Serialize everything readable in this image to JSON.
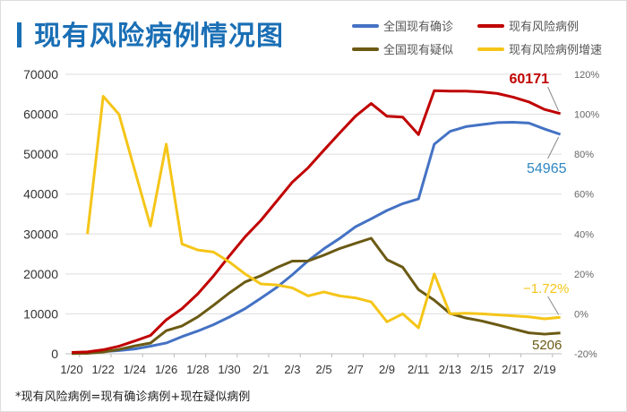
{
  "title": "现有风险病例情况图",
  "footnote": "*现有风险病例=现有确诊病例+现在疑似病例",
  "chart_data": {
    "type": "line",
    "title": "现有风险病例情况图",
    "x": [
      "1/20",
      "1/21",
      "1/22",
      "1/23",
      "1/24",
      "1/25",
      "1/26",
      "1/27",
      "1/28",
      "1/29",
      "1/30",
      "1/31",
      "2/1",
      "2/2",
      "2/3",
      "2/4",
      "2/5",
      "2/6",
      "2/7",
      "2/8",
      "2/9",
      "2/10",
      "2/11",
      "2/12",
      "2/13",
      "2/14",
      "2/15",
      "2/16",
      "2/17",
      "2/18",
      "2/19",
      "2/20"
    ],
    "x_tick_labels": [
      "1/20",
      "1/22",
      "1/24",
      "1/26",
      "1/28",
      "1/30",
      "2/1",
      "2/3",
      "2/5",
      "2/7",
      "2/9",
      "2/11",
      "2/13",
      "2/15",
      "2/17",
      "2/19"
    ],
    "y_left": {
      "min": 0,
      "max": 70000,
      "ticks": [
        "0",
        "10000",
        "20000",
        "30000",
        "40000",
        "50000",
        "60000",
        "70000"
      ]
    },
    "y_right": {
      "min": -20,
      "max": 120,
      "unit": "%",
      "ticks": [
        "-20%",
        "0%",
        "20%",
        "40%",
        "60%",
        "80%",
        "100%",
        "120%"
      ]
    },
    "grid": true,
    "legend_placement": "top-right",
    "series": [
      {
        "name": "全国现有确诊",
        "axis": "left",
        "color": "#4472c4",
        "values": [
          291,
          380,
          550,
          800,
          1200,
          1900,
          2700,
          4300,
          5700,
          7300,
          9200,
          11300,
          13900,
          16600,
          19800,
          23300,
          26300,
          28900,
          31800,
          33800,
          35900,
          37600,
          38800,
          52500,
          55700,
          56900,
          57400,
          57900,
          58000,
          57800,
          56300,
          54965
        ]
      },
      {
        "name": "现有风险病例",
        "axis": "left",
        "color": "#c00000",
        "values": [
          345,
          480,
          1000,
          1900,
          3200,
          4600,
          8500,
          11300,
          15000,
          19500,
          24500,
          29300,
          33400,
          38200,
          43000,
          46600,
          51000,
          55300,
          59500,
          62700,
          59500,
          59300,
          54900,
          65900,
          65800,
          65800,
          65600,
          65200,
          64300,
          63100,
          61200,
          60171
        ]
      },
      {
        "name": "全国现有疑似",
        "axis": "left",
        "color": "#6b5a14",
        "values": [
          54,
          100,
          450,
          1072,
          1965,
          2684,
          5794,
          6973,
          9239,
          12167,
          15238,
          17988,
          19544,
          21558,
          23214,
          23260,
          24702,
          26359,
          27657,
          28942,
          23589,
          21675,
          16067,
          13435,
          10109,
          8969,
          8228,
          7264,
          6242,
          5248,
          4922,
          5206
        ]
      },
      {
        "name": "现有风险病例增速",
        "axis": "right",
        "color": "#f5c518",
        "values": [
          null,
          40,
          109,
          100,
          72,
          44,
          85,
          35,
          32,
          31,
          26,
          20,
          15,
          14.5,
          13,
          9,
          11,
          9,
          8,
          6,
          -4,
          0,
          -7,
          20,
          0,
          0.3,
          0,
          -0.5,
          -1,
          -1.5,
          -2.5,
          -1.72
        ]
      }
    ],
    "annotations": [
      {
        "text": "60171",
        "series": "现有风险病例",
        "x": "2/20",
        "color": "#c00000"
      },
      {
        "text": "54965",
        "series": "全国现有确诊",
        "x": "2/20",
        "color": "#2e86c1"
      },
      {
        "text": "−1.72%",
        "series": "现有风险病例增速",
        "x": "2/20",
        "color": "#f5c518"
      },
      {
        "text": "5206",
        "series": "全国现有疑似",
        "x": "2/20",
        "color": "#6b5a14"
      }
    ]
  }
}
